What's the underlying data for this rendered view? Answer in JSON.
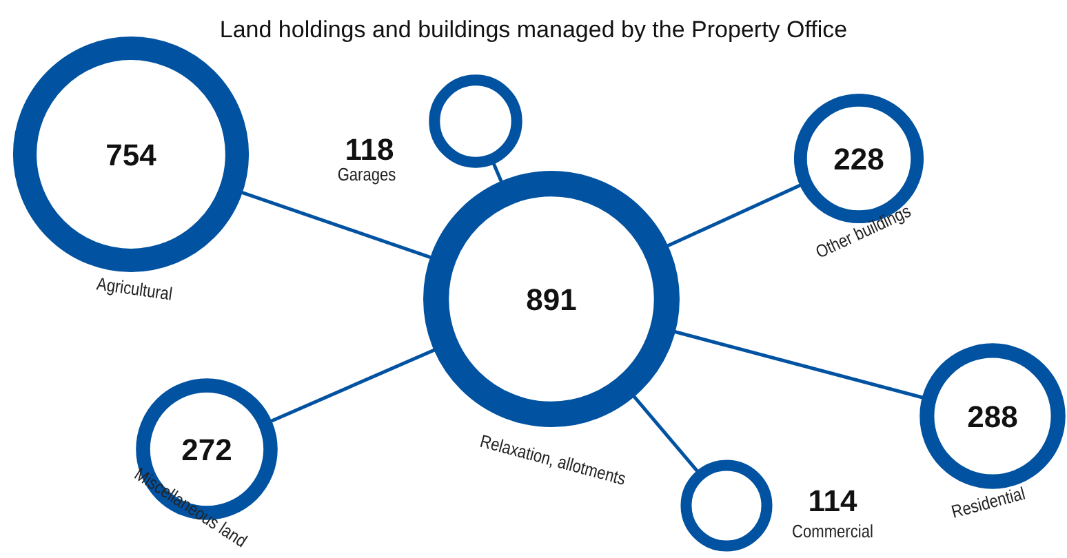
{
  "chart_data": {
    "type": "other",
    "title": "Land holdings and buildings managed by the Property Office",
    "categories": [
      "Agricultural",
      "Garages",
      "Relaxation, allotments",
      "Other buildings",
      "Residential",
      "Miscellaneous land",
      "Commercial"
    ],
    "values": [
      754,
      118,
      891,
      228,
      288,
      272,
      114
    ],
    "color": "#0152a1",
    "data_labels": true
  }
}
